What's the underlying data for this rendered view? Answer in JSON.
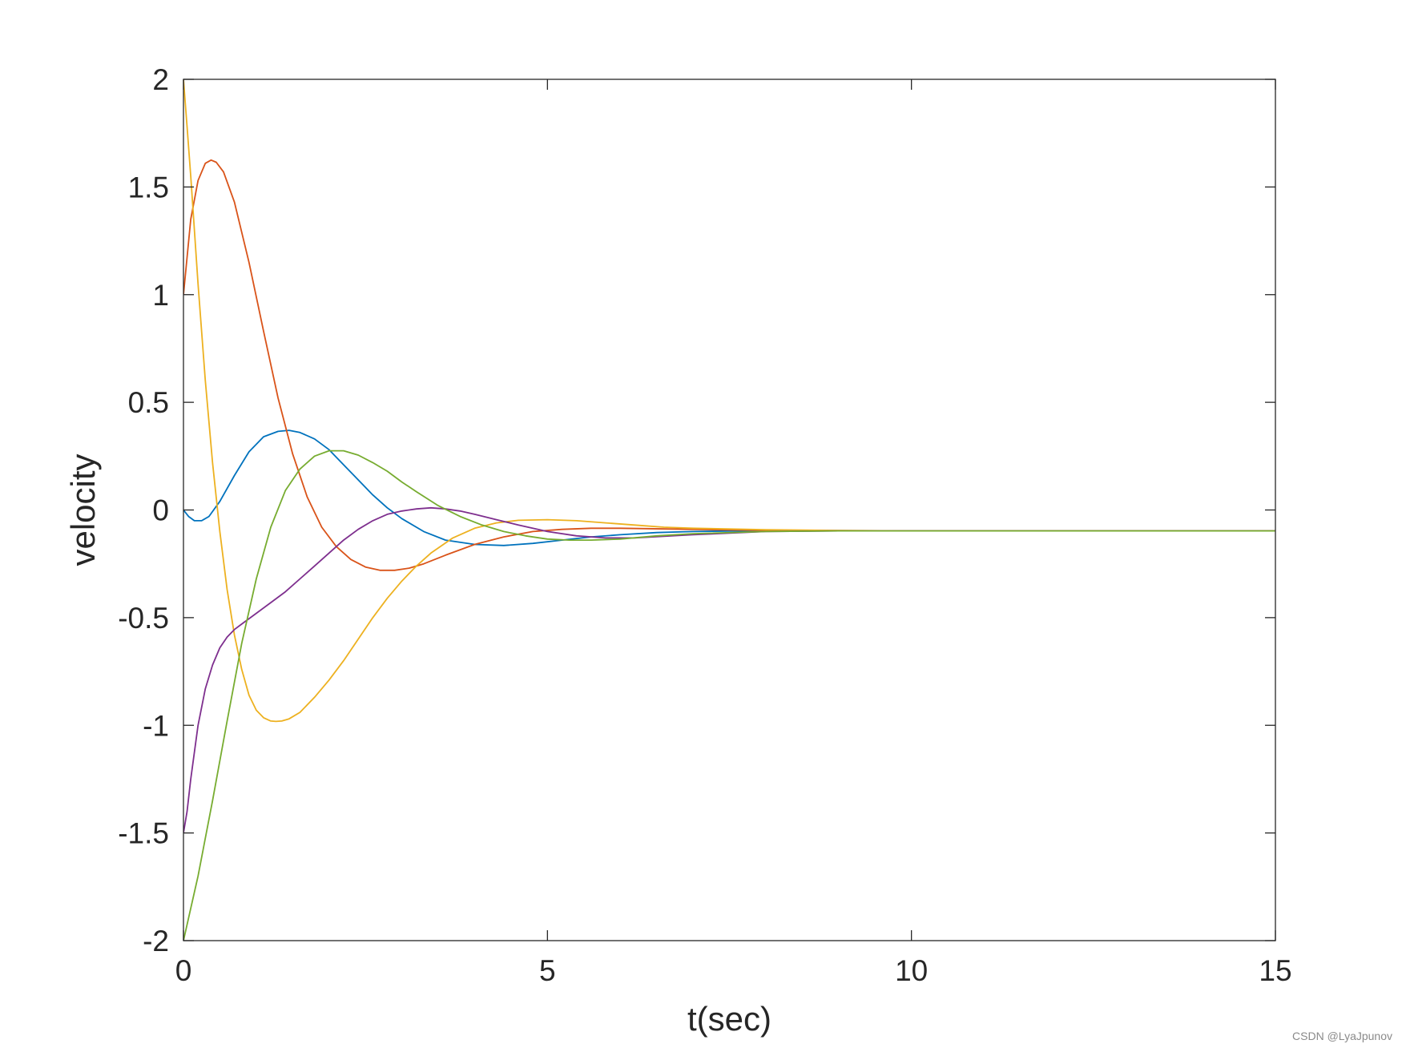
{
  "chart_data": {
    "type": "line",
    "title": "",
    "xlabel": "t(sec)",
    "ylabel": "velocity",
    "xlim": [
      0,
      15
    ],
    "ylim": [
      -2,
      2
    ],
    "xticks": [
      0,
      5,
      10,
      15
    ],
    "xtick_labels": [
      "0",
      "5",
      "10",
      "15"
    ],
    "yticks": [
      -2,
      -1.5,
      -1,
      -0.5,
      0,
      0.5,
      1,
      1.5,
      2
    ],
    "ytick_labels": [
      "-2",
      "-1.5",
      "-1",
      "-0.5",
      "0",
      "0.5",
      "1",
      "1.5",
      "2"
    ],
    "grid": false,
    "box": true,
    "series": [
      {
        "color": "#0072BD",
        "x": [
          0,
          0.07,
          0.15,
          0.25,
          0.35,
          0.5,
          0.7,
          0.9,
          1.1,
          1.3,
          1.45,
          1.6,
          1.8,
          2.0,
          2.2,
          2.4,
          2.6,
          2.8,
          3.0,
          3.3,
          3.6,
          4.0,
          4.4,
          4.8,
          5.2,
          5.6,
          6.0,
          6.5,
          7.0,
          7.5,
          8.0,
          9.0,
          10.0,
          12.0,
          15.0
        ],
        "y": [
          0,
          -0.03,
          -0.05,
          -0.05,
          -0.03,
          0.04,
          0.16,
          0.27,
          0.34,
          0.365,
          0.37,
          0.36,
          0.33,
          0.28,
          0.21,
          0.14,
          0.07,
          0.01,
          -0.04,
          -0.1,
          -0.14,
          -0.16,
          -0.165,
          -0.155,
          -0.14,
          -0.125,
          -0.115,
          -0.105,
          -0.1,
          -0.098,
          -0.097,
          -0.097,
          -0.097,
          -0.097,
          -0.097
        ]
      },
      {
        "color": "#D95319",
        "x": [
          0,
          0.1,
          0.2,
          0.3,
          0.38,
          0.45,
          0.55,
          0.7,
          0.9,
          1.1,
          1.3,
          1.5,
          1.7,
          1.9,
          2.1,
          2.3,
          2.5,
          2.7,
          2.9,
          3.1,
          3.3,
          3.6,
          4.0,
          4.4,
          4.8,
          5.2,
          5.6,
          6.0,
          7.0,
          8.0,
          9.0,
          10.0,
          12.0,
          15.0
        ],
        "y": [
          1.0,
          1.35,
          1.53,
          1.61,
          1.625,
          1.615,
          1.57,
          1.43,
          1.15,
          0.83,
          0.52,
          0.26,
          0.06,
          -0.08,
          -0.17,
          -0.23,
          -0.265,
          -0.28,
          -0.28,
          -0.27,
          -0.25,
          -0.21,
          -0.16,
          -0.125,
          -0.1,
          -0.09,
          -0.085,
          -0.085,
          -0.09,
          -0.095,
          -0.097,
          -0.097,
          -0.097,
          -0.097
        ]
      },
      {
        "color": "#EDB120",
        "x": [
          0,
          0.05,
          0.1,
          0.2,
          0.3,
          0.4,
          0.5,
          0.6,
          0.7,
          0.8,
          0.9,
          1.0,
          1.1,
          1.2,
          1.27,
          1.35,
          1.45,
          1.6,
          1.8,
          2.0,
          2.2,
          2.4,
          2.6,
          2.8,
          3.0,
          3.2,
          3.4,
          3.7,
          4.0,
          4.3,
          4.6,
          5.0,
          5.4,
          5.8,
          6.2,
          6.6,
          7.0,
          8.0,
          9.0,
          10.0,
          12.0,
          15.0
        ],
        "y": [
          2.0,
          1.78,
          1.55,
          1.05,
          0.6,
          0.22,
          -0.1,
          -0.37,
          -0.58,
          -0.74,
          -0.86,
          -0.93,
          -0.965,
          -0.98,
          -0.982,
          -0.98,
          -0.97,
          -0.94,
          -0.87,
          -0.79,
          -0.7,
          -0.6,
          -0.5,
          -0.41,
          -0.33,
          -0.26,
          -0.2,
          -0.13,
          -0.085,
          -0.06,
          -0.048,
          -0.045,
          -0.05,
          -0.06,
          -0.07,
          -0.08,
          -0.085,
          -0.092,
          -0.095,
          -0.097,
          -0.097,
          -0.097
        ]
      },
      {
        "color": "#7E2F8E",
        "x": [
          0,
          0.05,
          0.1,
          0.2,
          0.3,
          0.4,
          0.5,
          0.6,
          0.7,
          0.8,
          1.0,
          1.2,
          1.4,
          1.6,
          1.8,
          2.0,
          2.2,
          2.4,
          2.6,
          2.8,
          3.0,
          3.2,
          3.4,
          3.6,
          3.8,
          4.0,
          4.3,
          4.6,
          5.0,
          5.4,
          5.8,
          6.2,
          7.0,
          8.0,
          9.0,
          10.0,
          12.0,
          15.0
        ],
        "y": [
          -1.5,
          -1.4,
          -1.25,
          -1.0,
          -0.83,
          -0.72,
          -0.64,
          -0.59,
          -0.555,
          -0.53,
          -0.48,
          -0.43,
          -0.38,
          -0.32,
          -0.26,
          -0.2,
          -0.14,
          -0.09,
          -0.05,
          -0.02,
          -0.005,
          0.005,
          0.01,
          0.005,
          -0.005,
          -0.02,
          -0.045,
          -0.07,
          -0.1,
          -0.12,
          -0.13,
          -0.13,
          -0.115,
          -0.1,
          -0.097,
          -0.097,
          -0.097,
          -0.097
        ]
      },
      {
        "color": "#77AC30",
        "x": [
          0,
          0.2,
          0.4,
          0.6,
          0.8,
          1.0,
          1.2,
          1.4,
          1.6,
          1.8,
          2.0,
          2.2,
          2.4,
          2.6,
          2.8,
          3.0,
          3.2,
          3.5,
          3.8,
          4.1,
          4.4,
          4.7,
          5.0,
          5.3,
          5.6,
          6.0,
          6.5,
          7.0,
          8.0,
          9.0,
          10.0,
          12.0,
          15.0
        ],
        "y": [
          -2.0,
          -1.7,
          -1.35,
          -0.98,
          -0.62,
          -0.32,
          -0.08,
          0.09,
          0.19,
          0.25,
          0.275,
          0.275,
          0.255,
          0.22,
          0.18,
          0.13,
          0.085,
          0.02,
          -0.03,
          -0.07,
          -0.1,
          -0.12,
          -0.135,
          -0.14,
          -0.14,
          -0.135,
          -0.12,
          -0.11,
          -0.1,
          -0.097,
          -0.097,
          -0.097,
          -0.097
        ]
      }
    ]
  },
  "watermark": "CSDN @LyaJpunov"
}
